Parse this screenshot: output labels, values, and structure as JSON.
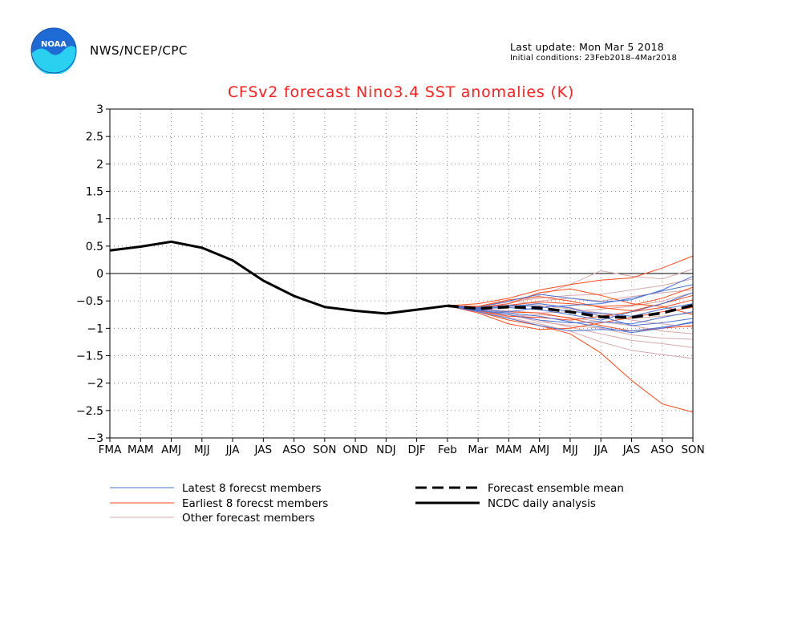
{
  "header": {
    "agency": "NWS/NCEP/CPC",
    "last_update": "Last update: Mon Mar 5 2018",
    "initial_conditions": "Initial conditions: 23Feb2018–4Mar2018"
  },
  "colors": {
    "title": "#ff1f1f",
    "latest_members": "#4b73d6",
    "earliest_members": "#ff4a1a",
    "other_members": "#d9a8a8",
    "analysis": "#000000",
    "ensemble_mean": "#000000"
  },
  "chart_data": {
    "type": "line",
    "title": "CFSv2 forecast Nino3.4 SST anomalies (K)",
    "xlabel": "",
    "ylabel": "",
    "categories": [
      "FMA",
      "MAM",
      "AMJ",
      "MJJ",
      "JJA",
      "JAS",
      "ASO",
      "SON",
      "OND",
      "NDJ",
      "DJF",
      "Feb",
      "Mar",
      "MAM",
      "AMJ",
      "MJJ",
      "JJA",
      "JAS",
      "ASO",
      "SON"
    ],
    "ylim": [
      -3,
      3
    ],
    "yticks": [
      "3",
      "2.5",
      "2",
      "1.5",
      "1",
      "0.5",
      "0",
      "−0.5",
      "−1",
      "−1.5",
      "−2",
      "−2.5",
      "−3"
    ],
    "ytick_values": [
      3,
      2.5,
      2,
      1.5,
      1,
      0.5,
      0,
      -0.5,
      -1,
      -1.5,
      -2,
      -2.5,
      -3
    ],
    "grid": true,
    "zero_line": true,
    "legend": {
      "latest": "Latest 8 forecst members",
      "earliest": "Earliest 8 forecst members",
      "other": "Other forecast members",
      "mean": "Forecast ensemble mean",
      "analysis": "NCDC daily analysis"
    },
    "analysis": [
      0.42,
      0.49,
      0.58,
      0.47,
      0.24,
      -0.13,
      -0.41,
      -0.61,
      -0.68,
      -0.73,
      -0.66,
      -0.59
    ],
    "ensemble_mean": [
      -0.59,
      -0.64,
      -0.61,
      -0.63,
      -0.7,
      -0.79,
      -0.8,
      -0.72,
      -0.58
    ],
    "latest_members": [
      [
        -0.59,
        -0.65,
        -0.6,
        -0.55,
        -0.63,
        -0.78,
        -0.95,
        -0.9,
        -0.82
      ],
      [
        -0.59,
        -0.68,
        -0.72,
        -0.78,
        -0.88,
        -0.98,
        -1.08,
        -1.0,
        -0.88
      ],
      [
        -0.59,
        -0.62,
        -0.5,
        -0.38,
        -0.45,
        -0.52,
        -0.48,
        -0.3,
        -0.05
      ],
      [
        -0.59,
        -0.66,
        -0.7,
        -0.62,
        -0.58,
        -0.55,
        -0.45,
        -0.32,
        -0.2
      ],
      [
        -0.59,
        -0.7,
        -0.82,
        -0.95,
        -1.05,
        -1.02,
        -1.05,
        -0.98,
        -0.9
      ],
      [
        -0.59,
        -0.63,
        -0.58,
        -0.6,
        -0.7,
        -0.72,
        -0.78,
        -0.65,
        -0.55
      ],
      [
        -0.59,
        -0.67,
        -0.75,
        -0.85,
        -0.9,
        -0.88,
        -0.92,
        -0.8,
        -0.7
      ],
      [
        -0.59,
        -0.64,
        -0.62,
        -0.66,
        -0.75,
        -0.85,
        -0.7,
        -0.55,
        -0.35
      ]
    ],
    "earliest_members": [
      [
        -0.59,
        -0.55,
        -0.45,
        -0.3,
        -0.2,
        -0.12,
        -0.08,
        0.1,
        0.32
      ],
      [
        -0.59,
        -0.7,
        -0.85,
        -0.95,
        -1.1,
        -1.45,
        -1.95,
        -2.38,
        -2.53
      ],
      [
        -0.59,
        -0.66,
        -0.7,
        -0.72,
        -0.82,
        -0.95,
        -1.05,
        -1.0,
        -0.95
      ],
      [
        -0.59,
        -0.62,
        -0.58,
        -0.52,
        -0.55,
        -0.6,
        -0.58,
        -0.45,
        -0.25
      ],
      [
        -0.59,
        -0.72,
        -0.92,
        -1.02,
        -1.0,
        -0.9,
        -0.8,
        -0.7,
        -0.62
      ],
      [
        -0.59,
        -0.6,
        -0.48,
        -0.42,
        -0.5,
        -0.62,
        -0.68,
        -0.55,
        -0.4
      ],
      [
        -0.59,
        -0.68,
        -0.78,
        -0.8,
        -0.85,
        -0.78,
        -0.7,
        -0.62,
        -0.48
      ],
      [
        -0.59,
        -0.63,
        -0.55,
        -0.35,
        -0.28,
        -0.4,
        -0.55,
        -0.6,
        -0.75
      ]
    ],
    "other_members": [
      [
        -0.59,
        -0.62,
        -0.55,
        -0.4,
        -0.2,
        0.05,
        -0.05,
        -0.1,
        0.08
      ],
      [
        -0.59,
        -0.68,
        -0.8,
        -0.92,
        -1.05,
        -1.25,
        -1.4,
        -1.48,
        -1.55
      ],
      [
        -0.59,
        -0.64,
        -0.72,
        -0.85,
        -0.98,
        -1.1,
        -1.22,
        -1.28,
        -1.35
      ],
      [
        -0.59,
        -0.61,
        -0.52,
        -0.45,
        -0.4,
        -0.38,
        -0.3,
        -0.22,
        -0.1
      ],
      [
        -0.59,
        -0.7,
        -0.78,
        -0.75,
        -0.8,
        -0.88,
        -0.95,
        -1.05,
        -1.1
      ],
      [
        -0.59,
        -0.63,
        -0.68,
        -0.72,
        -0.7,
        -0.65,
        -0.6,
        -0.5,
        -0.35
      ],
      [
        -0.59,
        -0.66,
        -0.6,
        -0.58,
        -0.65,
        -0.72,
        -0.85,
        -0.92,
        -0.98
      ],
      [
        -0.59,
        -0.6,
        -0.5,
        -0.55,
        -0.62,
        -0.75,
        -0.82,
        -0.78,
        -0.72
      ],
      [
        -0.59,
        -0.69,
        -0.75,
        -0.88,
        -0.95,
        -1.0,
        -1.12,
        -1.18,
        -1.2
      ],
      [
        -0.59,
        -0.62,
        -0.58,
        -0.5,
        -0.45,
        -0.5,
        -0.42,
        -0.35,
        -0.3
      ]
    ]
  }
}
